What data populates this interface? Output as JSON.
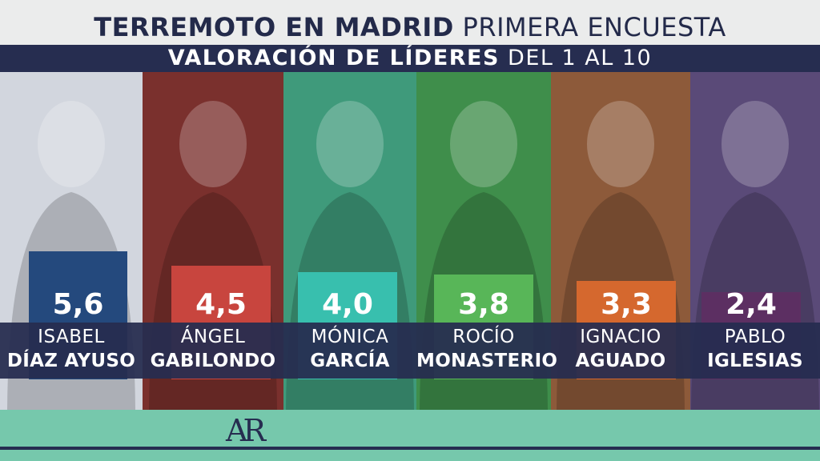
{
  "header": {
    "title_bold": "TERREMOTO EN MADRID",
    "title_light": "PRIMERA ENCUESTA",
    "subtitle_bold": "VALORACIÓN DE LÍDERES",
    "subtitle_light": "DEL 1 AL 10"
  },
  "chart_data": {
    "type": "bar",
    "categories": [
      "ISABEL DÍAZ AYUSO",
      "ÁNGEL GABILONDO",
      "MÓNICA GARCÍA",
      "ROCÍO MONASTERIO",
      "IGNACIO AGUADO",
      "PABLO IGLESIAS"
    ],
    "values": [
      5.6,
      4.5,
      4.0,
      3.8,
      3.3,
      2.4
    ],
    "ylim": [
      0,
      10
    ],
    "value_labels": [
      "5,6",
      "4,5",
      "4,0",
      "3,8",
      "3,3",
      "2,4"
    ],
    "bar_colors": [
      "#24497d",
      "#c8453e",
      "#38bfae",
      "#58b658",
      "#d5682e",
      "#5c2f62"
    ],
    "panel_tints": [
      "#d2d6de",
      "#7a302d",
      "#3f9a7b",
      "#3f8e4b",
      "#8d5a3a",
      "#5a4a78"
    ]
  },
  "leaders": [
    {
      "first": "ISABEL",
      "last": "DÍAZ AYUSO"
    },
    {
      "first": "ÁNGEL",
      "last": "GABILONDO"
    },
    {
      "first": "MÓNICA",
      "last": "GARCÍA"
    },
    {
      "first": "ROCÍO",
      "last": "MONASTERIO"
    },
    {
      "first": "IGNACIO",
      "last": "AGUADO"
    },
    {
      "first": "PABLO",
      "last": "IGLESIAS"
    }
  ],
  "footer": {
    "logo_text": "AR",
    "logo_icon": "ar-logo-icon"
  }
}
